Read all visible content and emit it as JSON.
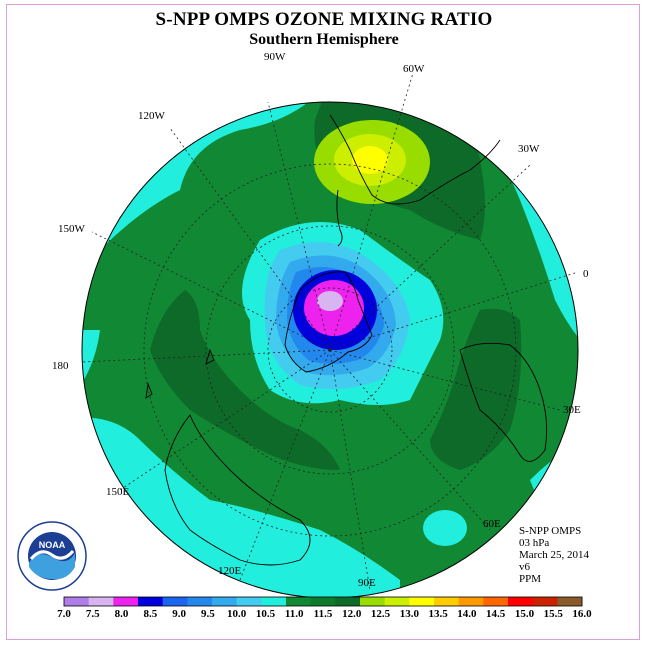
{
  "title": "S-NPP OMPS OZONE MIXING RATIO",
  "subtitle": "Southern Hemisphere",
  "longitude_labels": {
    "w90": "90W",
    "w60": "60W",
    "w30": "30W",
    "w120": "120W",
    "w150": "150W",
    "zero": "0",
    "lon180": "180",
    "e30": "30E",
    "e60": "60E",
    "e90": "90E",
    "e120": "120E",
    "e150": "150E"
  },
  "info": {
    "instrument": "S-NPP OMPS",
    "level": "03 hPa",
    "date": "March 25, 2014",
    "version": "v6",
    "units": "PPM"
  },
  "logo": {
    "text": "NOAA"
  },
  "colorbar": {
    "colors": [
      "#b07ee8",
      "#d8b4f0",
      "#ee22ee",
      "#0000dd",
      "#1a66ee",
      "#2288ee",
      "#33aaee",
      "#44ccf0",
      "#22eedd",
      "#118833",
      "#107a2c",
      "#0d6a28",
      "#99dd00",
      "#ccee00",
      "#ffff00",
      "#ffcc00",
      "#ff9900",
      "#ff6600",
      "#ff0000",
      "#cc2200",
      "#8b5a2b"
    ],
    "labels": [
      "7.0",
      "7.5",
      "8.0",
      "8.5",
      "9.0",
      "9.5",
      "10.0",
      "10.5",
      "11.0",
      "11.5",
      "12.0",
      "12.5",
      "13.0",
      "13.5",
      "14.0",
      "14.5",
      "15.0",
      "15.5",
      "16.0"
    ]
  },
  "map_colors": {
    "base": "#118833",
    "dark": "#0d6a28",
    "cyan": "#22eedd",
    "c1": "#44ccf0",
    "c2": "#33aaee",
    "c3": "#2288ee",
    "blue": "#0000dd",
    "magenta": "#ee22ee",
    "lavender": "#d8b4f0",
    "ygreen": "#99dd00",
    "yellowgreen": "#ccee00",
    "yellow": "#ffff00"
  }
}
